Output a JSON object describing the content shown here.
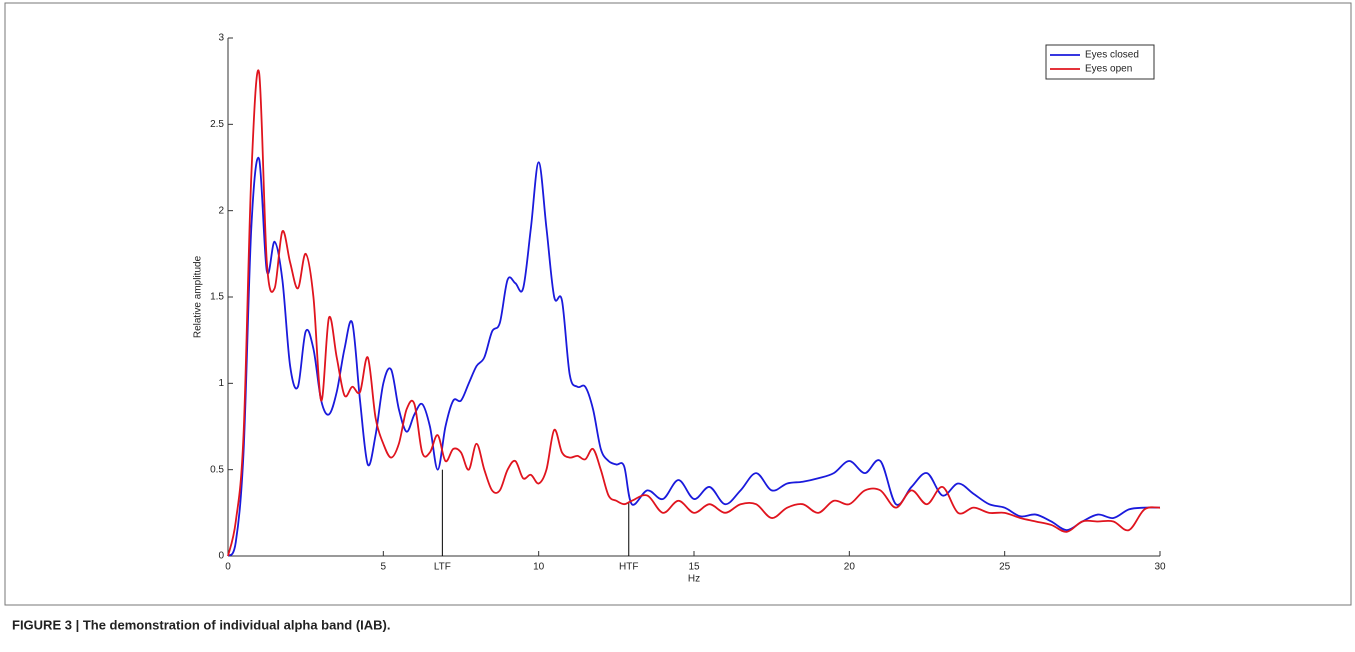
{
  "chart_data": {
    "type": "line",
    "caption": "FIGURE 3 | The demonstration of individual alpha band (IAB).",
    "xlabel": "Hz",
    "ylabel": "Relative amplitude",
    "x": [
      0,
      0.25,
      0.5,
      0.75,
      1,
      1.25,
      1.5,
      1.75,
      2,
      2.25,
      2.5,
      2.75,
      3,
      3.25,
      3.5,
      3.75,
      4,
      4.25,
      4.5,
      4.75,
      5,
      5.25,
      5.5,
      5.75,
      6,
      6.25,
      6.5,
      6.75,
      7,
      7.25,
      7.5,
      7.75,
      8,
      8.25,
      8.5,
      8.75,
      9,
      9.25,
      9.5,
      9.75,
      10,
      10.25,
      10.5,
      10.75,
      11,
      11.25,
      11.5,
      11.75,
      12,
      12.25,
      12.5,
      12.75,
      13,
      13.5,
      14,
      14.5,
      15,
      15.5,
      16,
      16.5,
      17,
      17.5,
      18,
      18.5,
      19,
      19.5,
      20,
      20.5,
      21,
      21.5,
      22,
      22.5,
      23,
      23.5,
      24,
      24.5,
      25,
      25.5,
      26,
      26.5,
      27,
      27.5,
      28,
      28.5,
      29,
      29.5,
      30
    ],
    "series": [
      {
        "name": "Eyes closed",
        "color": "#1a1adc",
        "values": [
          0,
          0.08,
          0.6,
          1.9,
          2.3,
          1.65,
          1.82,
          1.6,
          1.1,
          0.98,
          1.3,
          1.2,
          0.9,
          0.82,
          0.95,
          1.2,
          1.35,
          0.9,
          0.53,
          0.7,
          1.0,
          1.08,
          0.85,
          0.72,
          0.82,
          0.88,
          0.75,
          0.5,
          0.75,
          0.9,
          0.9,
          1.0,
          1.1,
          1.15,
          1.3,
          1.35,
          1.6,
          1.58,
          1.55,
          1.9,
          2.28,
          1.9,
          1.5,
          1.48,
          1.05,
          0.98,
          0.98,
          0.85,
          0.62,
          0.55,
          0.53,
          0.52,
          0.3,
          0.38,
          0.33,
          0.44,
          0.33,
          0.4,
          0.3,
          0.38,
          0.48,
          0.38,
          0.42,
          0.43,
          0.45,
          0.48,
          0.55,
          0.48,
          0.55,
          0.3,
          0.4,
          0.48,
          0.35,
          0.42,
          0.36,
          0.3,
          0.28,
          0.23,
          0.24,
          0.2,
          0.15,
          0.2,
          0.24,
          0.22,
          0.27,
          0.28,
          0.28
        ]
      },
      {
        "name": "Eyes open",
        "color": "#e0141e",
        "values": [
          0,
          0.2,
          0.7,
          2.2,
          2.8,
          1.7,
          1.55,
          1.88,
          1.7,
          1.55,
          1.75,
          1.5,
          0.9,
          1.38,
          1.15,
          0.93,
          0.98,
          0.95,
          1.15,
          0.8,
          0.65,
          0.57,
          0.65,
          0.85,
          0.88,
          0.6,
          0.6,
          0.7,
          0.55,
          0.62,
          0.6,
          0.5,
          0.65,
          0.5,
          0.38,
          0.38,
          0.5,
          0.55,
          0.45,
          0.47,
          0.42,
          0.5,
          0.73,
          0.6,
          0.57,
          0.58,
          0.56,
          0.62,
          0.5,
          0.35,
          0.32,
          0.3,
          0.32,
          0.35,
          0.25,
          0.32,
          0.25,
          0.3,
          0.25,
          0.3,
          0.3,
          0.22,
          0.28,
          0.3,
          0.25,
          0.32,
          0.3,
          0.38,
          0.38,
          0.28,
          0.38,
          0.3,
          0.4,
          0.25,
          0.28,
          0.25,
          0.25,
          0.22,
          0.2,
          0.18,
          0.14,
          0.2,
          0.2,
          0.2,
          0.15,
          0.27,
          0.28
        ]
      }
    ],
    "annotations": [
      {
        "text": "LTF",
        "x": 6.9,
        "y": 0.5
      },
      {
        "text": "HTF",
        "x": 12.9,
        "y": 0.31
      }
    ],
    "xlim": [
      0,
      30
    ],
    "xticks": [
      0,
      5,
      10,
      15,
      20,
      25,
      30
    ],
    "ylim": [
      0,
      3
    ],
    "yticks": [
      0,
      0.5,
      1,
      1.5,
      2,
      2.5,
      3
    ],
    "legend": "upper right",
    "grid": false
  }
}
